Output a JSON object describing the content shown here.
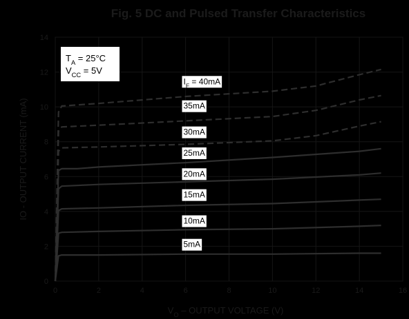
{
  "chart_data": {
    "type": "line",
    "title": "Fig. 5  DC and Pulsed Transfer Characteristics",
    "xlabel": "V_O – OUTPUT VOLTAGE (V)",
    "ylabel": "IO - OUTPUT CURRENT (mA)",
    "xlim": [
      0,
      16
    ],
    "ylim": [
      0,
      14
    ],
    "xticks": [
      "0",
      "2",
      "4",
      "6",
      "8",
      "10",
      "12",
      "14",
      "16"
    ],
    "yticks": [
      "0",
      "2",
      "4",
      "6",
      "8",
      "10",
      "12",
      "14"
    ],
    "grid": true,
    "annotations": {
      "ta": "T_A = 25°C",
      "vcc": "V_CC = 5V"
    },
    "series": [
      {
        "name": "I_F = 40mA",
        "dashed": true,
        "x": [
          0,
          0.15,
          0.3,
          2,
          6,
          10,
          12,
          14,
          15
        ],
        "y": [
          0,
          9.7,
          10.05,
          10.2,
          10.6,
          10.9,
          11.2,
          11.85,
          12.15
        ]
      },
      {
        "name": "35mA",
        "dashed": true,
        "x": [
          0,
          0.15,
          0.3,
          2,
          6,
          10,
          12,
          14,
          15
        ],
        "y": [
          0,
          8.6,
          8.85,
          8.95,
          9.2,
          9.45,
          9.8,
          10.4,
          10.65
        ]
      },
      {
        "name": "30mA",
        "dashed": true,
        "x": [
          0,
          0.15,
          0.3,
          2,
          6,
          10,
          12,
          14,
          15
        ],
        "y": [
          0,
          7.45,
          7.65,
          7.7,
          7.85,
          8.05,
          8.35,
          8.9,
          9.15
        ]
      },
      {
        "name": "25mA",
        "dashed": false,
        "x": [
          0,
          0.15,
          0.3,
          1,
          2,
          6,
          10,
          14,
          15
        ],
        "y": [
          0,
          6.35,
          6.45,
          6.45,
          6.55,
          6.8,
          7.1,
          7.45,
          7.6
        ]
      },
      {
        "name": "20mA",
        "dashed": false,
        "x": [
          0,
          0.15,
          0.3,
          2,
          6,
          10,
          14,
          15
        ],
        "y": [
          0,
          5.3,
          5.45,
          5.55,
          5.7,
          5.85,
          6.1,
          6.2
        ]
      },
      {
        "name": "15mA",
        "dashed": false,
        "x": [
          0,
          0.15,
          0.3,
          2,
          6,
          10,
          14,
          15
        ],
        "y": [
          0,
          4.05,
          4.15,
          4.2,
          4.35,
          4.45,
          4.65,
          4.7
        ]
      },
      {
        "name": "10mA",
        "dashed": false,
        "x": [
          0,
          0.15,
          0.3,
          2,
          6,
          10,
          14,
          15
        ],
        "y": [
          0,
          2.75,
          2.8,
          2.85,
          2.95,
          3.0,
          3.15,
          3.2
        ]
      },
      {
        "name": "5mA",
        "dashed": false,
        "x": [
          0,
          0.15,
          0.3,
          2,
          6,
          10,
          14,
          15
        ],
        "y": [
          0,
          1.45,
          1.5,
          1.5,
          1.55,
          1.55,
          1.6,
          1.6
        ]
      }
    ],
    "curve_labels": [
      {
        "text": "I_F = 40mA",
        "x": 5.9,
        "y": 11.3
      },
      {
        "text": "35mA",
        "x": 5.9,
        "y": 9.9
      },
      {
        "text": "30mA",
        "x": 5.9,
        "y": 8.4
      },
      {
        "text": "25mA",
        "x": 5.9,
        "y": 7.2
      },
      {
        "text": "20mA",
        "x": 5.9,
        "y": 6.0
      },
      {
        "text": "15mA",
        "x": 5.9,
        "y": 4.8
      },
      {
        "text": "10mA",
        "x": 5.9,
        "y": 3.3
      },
      {
        "text": "5mA",
        "x": 5.9,
        "y": 1.95
      }
    ]
  }
}
